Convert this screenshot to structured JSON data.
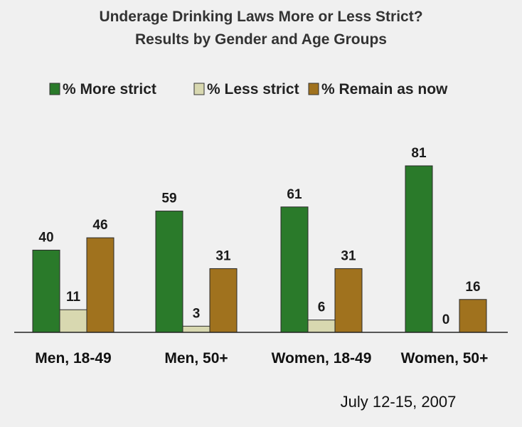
{
  "chart_data": {
    "type": "bar",
    "title": "Underage Drinking Laws More or Less Strict?",
    "subtitle": "Results by Gender and Age Groups",
    "categories": [
      "Men, 18-49",
      "Men, 50+",
      "Women, 18-49",
      "Women, 50+"
    ],
    "series": [
      {
        "name": "% More strict",
        "values": [
          40,
          59,
          61,
          81
        ],
        "color": "#2a7a2a"
      },
      {
        "name": "% Less strict",
        "values": [
          11,
          3,
          6,
          0
        ],
        "color": "#d8d8b0"
      },
      {
        "name": "% Remain as now",
        "values": [
          46,
          31,
          31,
          16
        ],
        "color": "#a0721e"
      }
    ],
    "xlabel": "",
    "ylabel": "",
    "ylim": [
      0,
      81
    ],
    "grid": false,
    "legend": "top",
    "note": "July 12-15, 2007"
  }
}
